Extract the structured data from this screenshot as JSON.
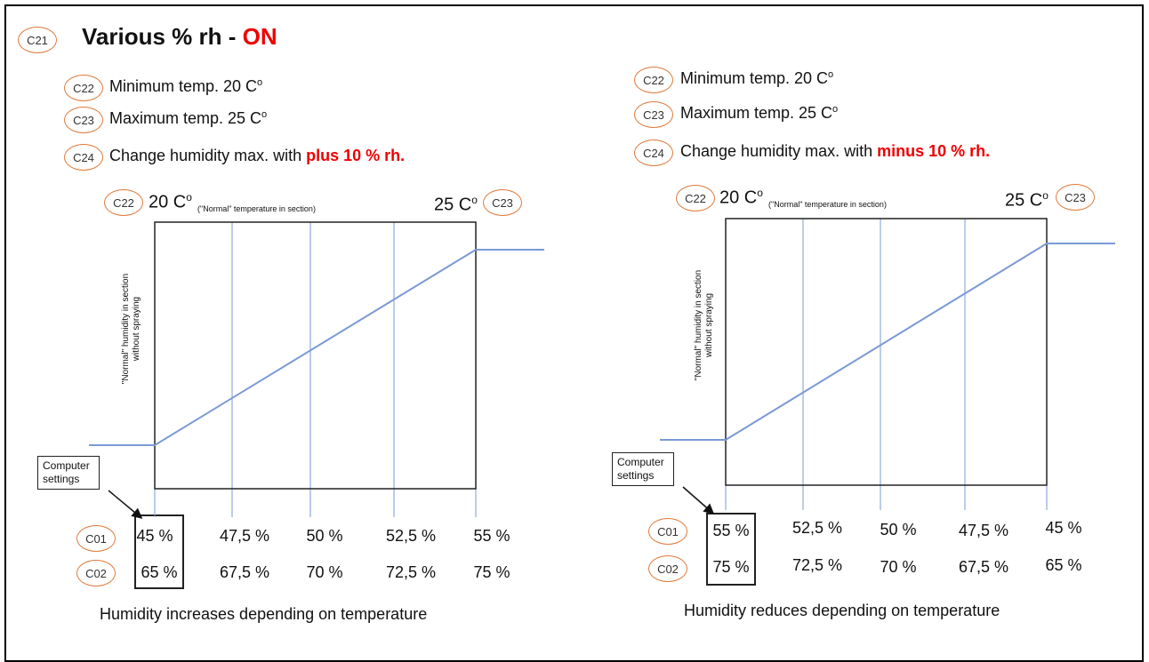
{
  "header": {
    "badge": "C21",
    "title_prefix": "Various % rh - ",
    "title_status": "ON"
  },
  "colors": {
    "accent_red": "#ee0000",
    "badge_border": "#e07a3a",
    "line_blue": "#7a9ad6"
  },
  "left": {
    "settings": [
      {
        "badge": "C22",
        "text": "Minimum temp. 20 C",
        "sup": "o"
      },
      {
        "badge": "C23",
        "text": "Maximum temp. 25 C",
        "sup": "o"
      },
      {
        "badge": "C24",
        "text": "Change humidity max. with ",
        "highlight": "plus 10 % rh."
      }
    ],
    "chart": {
      "min_badge": "C22",
      "min_label": "20 C",
      "min_sup": "o",
      "min_note": "(\"Normal\" temperature in section)",
      "max_label": "25 C",
      "max_sup": "o",
      "max_badge": "C23",
      "y_label_line1": "\"Normal\" humidity in section",
      "y_label_line2": "without spraying"
    },
    "computer_settings": "Computer settings",
    "rows": [
      {
        "badge": "C01",
        "values": [
          "45 %",
          "47,5 %",
          "50 %",
          "52,5 %",
          "55 %"
        ]
      },
      {
        "badge": "C02",
        "values": [
          "65 %",
          "67,5 %",
          "70 %",
          "72,5 %",
          "75 %"
        ]
      }
    ],
    "caption": "Humidity increases depending on temperature"
  },
  "right": {
    "settings": [
      {
        "badge": "C22",
        "text": "Minimum temp. 20 C",
        "sup": "o"
      },
      {
        "badge": "C23",
        "text": "Maximum temp. 25 C",
        "sup": "o"
      },
      {
        "badge": "C24",
        "text": "Change humidity max. with ",
        "highlight": "minus 10 % rh."
      }
    ],
    "chart": {
      "min_badge": "C22",
      "min_label": "20 C",
      "min_sup": "o",
      "min_note": "(\"Normal\" temperature in section)",
      "max_label": "25 C",
      "max_sup": "o",
      "max_badge": "C23",
      "y_label_line1": "\"Normal\" humidity in section",
      "y_label_line2": "without spraying"
    },
    "computer_settings": "Computer settings",
    "rows": [
      {
        "badge": "C01",
        "values": [
          "55 %",
          "52,5 %",
          "50 %",
          "47,5 %",
          "45 %"
        ]
      },
      {
        "badge": "C02",
        "values": [
          "75 %",
          "72,5 %",
          "70 %",
          "67,5 %",
          "65 %"
        ]
      }
    ],
    "caption": "Humidity reduces depending on temperature"
  }
}
